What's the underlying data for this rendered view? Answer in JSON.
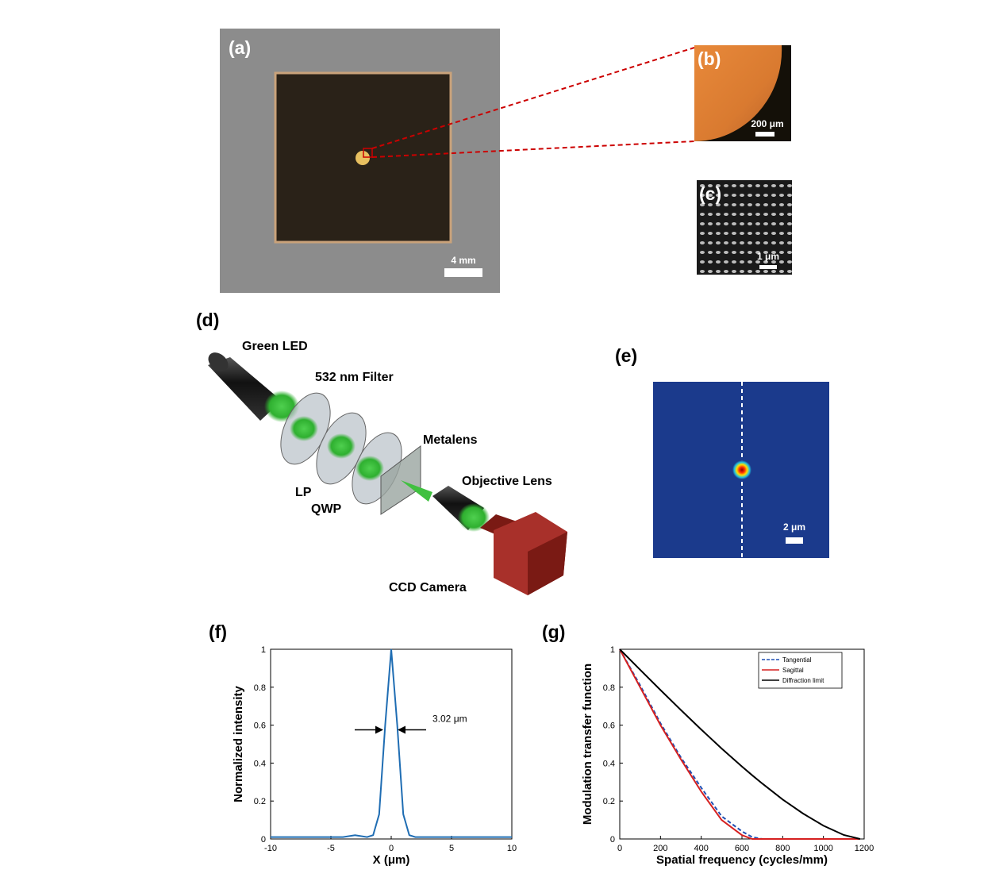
{
  "panels": {
    "a": {
      "label": "(a)",
      "scale": "4 mm"
    },
    "b": {
      "label": "(b)",
      "scale": "200 μm"
    },
    "c": {
      "label": "(c)",
      "scale": "1 μm"
    },
    "d": {
      "label": "(d)",
      "components": [
        "Green LED",
        "532 nm Filter",
        "Metalens",
        "Objective Lens",
        "LP",
        "QWP",
        "CCD Camera"
      ]
    },
    "e": {
      "label": "(e)",
      "scale": "2 μm"
    },
    "f": {
      "label": "(f)"
    },
    "g": {
      "label": "(g)"
    }
  },
  "chart_data": [
    {
      "type": "line",
      "xlabel": "X (μm)",
      "ylabel": "Normalized intensity",
      "x": [
        -10,
        -8,
        -6,
        -4,
        -3,
        -2,
        -1.5,
        -1,
        -0.5,
        0,
        0.5,
        1,
        1.5,
        2,
        3,
        4,
        6,
        8,
        10
      ],
      "series": [
        {
          "name": "Intensity",
          "color": "#1f6db3",
          "values": [
            0.01,
            0.01,
            0.01,
            0.01,
            0.02,
            0.01,
            0.02,
            0.13,
            0.6,
            1,
            0.6,
            0.13,
            0.02,
            0.01,
            0.01,
            0.01,
            0.01,
            0.01,
            0.01
          ]
        }
      ],
      "xlim": [
        -10,
        10
      ],
      "ylim": [
        0,
        1
      ],
      "xticks": [
        -10,
        -5,
        0,
        5,
        10
      ],
      "yticks": [
        0,
        0.2,
        0.4,
        0.6,
        0.8,
        1
      ],
      "annotation": "3.02 μm",
      "legend": false
    },
    {
      "type": "line",
      "xlabel": "Spatial frequency (cycles/mm)",
      "ylabel": "Modulation transfer function",
      "x": [
        0,
        100,
        200,
        300,
        400,
        500,
        600,
        650,
        700,
        800,
        900,
        1000,
        1100,
        1180
      ],
      "series": [
        {
          "name": "Tangential",
          "color": "#1f4fb3",
          "linestyle": "dashed",
          "values": [
            1,
            0.81,
            0.61,
            0.43,
            0.27,
            0.12,
            0.04,
            0.01,
            0,
            0,
            0,
            0,
            0,
            0
          ]
        },
        {
          "name": "Sagittal",
          "color": "#d62020",
          "linestyle": "solid",
          "values": [
            1,
            0.8,
            0.6,
            0.42,
            0.25,
            0.1,
            0.02,
            0,
            0,
            0,
            0,
            0,
            0,
            0
          ]
        },
        {
          "name": "Diffraction limit",
          "color": "#000000",
          "linestyle": "solid",
          "values": [
            1,
            0.892,
            0.785,
            0.68,
            0.577,
            0.477,
            0.382,
            0.336,
            0.292,
            0.208,
            0.134,
            0.07,
            0.021,
            0
          ]
        }
      ],
      "xlim": [
        0,
        1200
      ],
      "ylim": [
        0,
        1
      ],
      "xticks": [
        0,
        200,
        400,
        600,
        800,
        1000,
        1200
      ],
      "yticks": [
        0,
        0.2,
        0.4,
        0.6,
        0.8,
        1
      ],
      "legend": "upper right"
    }
  ]
}
